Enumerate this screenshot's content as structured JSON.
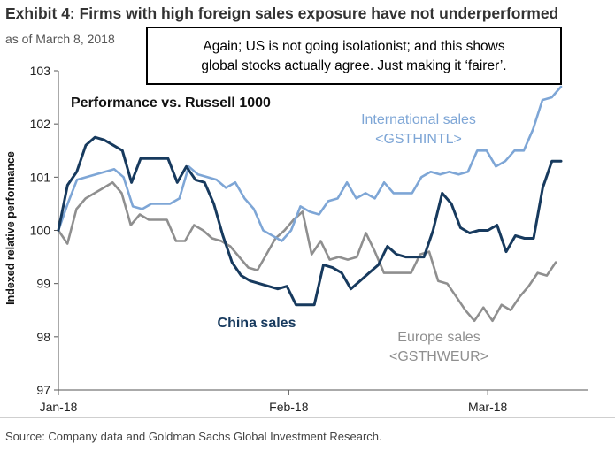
{
  "exhibit_title": "Exhibit 4: Firms with high foreign sales exposure have not underperformed",
  "as_of": "as of March 8, 2018",
  "callout": {
    "line1": "Again; US is not going isolationist; and this shows",
    "line2": "global stocks actually agree. Just making it ‘fairer’."
  },
  "source": "Source: Company data and Goldman Sachs Global Investment Research.",
  "colors": {
    "international": "#7ea6d6",
    "china": "#173a5e",
    "europe": "#8f8f8f"
  },
  "chart_data": {
    "type": "line",
    "title": "Performance vs. Russell 1000",
    "ylabel": "Indexed relative performance",
    "xlabel": "",
    "ylim": [
      97,
      103
    ],
    "yticks": [
      97,
      98,
      99,
      100,
      101,
      102,
      103
    ],
    "xlim": [
      0,
      48
    ],
    "xticks": [
      {
        "label": "Jan-18",
        "x": 0
      },
      {
        "label": "Feb-18",
        "x": 22
      },
      {
        "label": "Mar-18",
        "x": 41
      }
    ],
    "series": [
      {
        "name": "International sales",
        "code": "<GSTHINTL>",
        "color_key": "international",
        "values": [
          100.0,
          100.5,
          100.95,
          101.0,
          101.05,
          101.1,
          101.15,
          101.0,
          100.45,
          100.4,
          100.5,
          100.5,
          100.5,
          100.6,
          101.2,
          101.05,
          101.0,
          100.95,
          100.8,
          100.9,
          100.6,
          100.4,
          100.0,
          99.9,
          99.8,
          100.0,
          100.45,
          100.35,
          100.3,
          100.55,
          100.6,
          100.9,
          100.6,
          100.7,
          100.6,
          100.9,
          100.7,
          100.7,
          100.7,
          101.0,
          101.1,
          101.05,
          101.1,
          101.05,
          101.1,
          101.5,
          101.5,
          101.2,
          101.3,
          101.5,
          101.5,
          101.9,
          102.45,
          102.5,
          102.7
        ],
        "x_end": 48
      },
      {
        "name": "China sales",
        "code": "",
        "color_key": "china",
        "values": [
          100.0,
          100.85,
          101.1,
          101.6,
          101.75,
          101.7,
          101.6,
          101.5,
          100.9,
          101.35,
          101.35,
          101.35,
          101.35,
          100.9,
          101.2,
          100.95,
          100.9,
          100.5,
          99.9,
          99.4,
          99.15,
          99.05,
          99.0,
          98.95,
          98.9,
          98.95,
          98.6,
          98.6,
          98.6,
          99.35,
          99.3,
          99.2,
          98.9,
          99.05,
          99.2,
          99.35,
          99.7,
          99.55,
          99.5,
          99.5,
          99.5,
          100.0,
          100.7,
          100.5,
          100.05,
          99.95,
          100.0,
          100.0,
          100.1,
          99.6,
          99.9,
          99.85,
          99.85,
          100.8,
          101.3,
          101.3
        ],
        "x_end": 48
      },
      {
        "name": "Europe sales",
        "code": "<GSTHWEUR>",
        "color_key": "europe",
        "values": [
          100.0,
          99.75,
          100.4,
          100.6,
          100.7,
          100.8,
          100.9,
          100.7,
          100.1,
          100.3,
          100.2,
          100.2,
          100.2,
          99.8,
          99.8,
          100.1,
          100.0,
          99.85,
          99.8,
          99.7,
          99.5,
          99.3,
          99.25,
          99.55,
          99.85,
          100.0,
          100.2,
          100.35,
          99.55,
          99.8,
          99.45,
          99.5,
          99.45,
          99.5,
          99.95,
          99.6,
          99.2,
          99.2,
          99.2,
          99.2,
          99.55,
          99.6,
          99.05,
          99.0,
          98.75,
          98.5,
          98.3,
          98.55,
          98.3,
          98.6,
          98.5,
          98.75,
          98.95,
          99.2,
          99.15,
          99.4
        ],
        "x_end": 47.5
      }
    ]
  }
}
